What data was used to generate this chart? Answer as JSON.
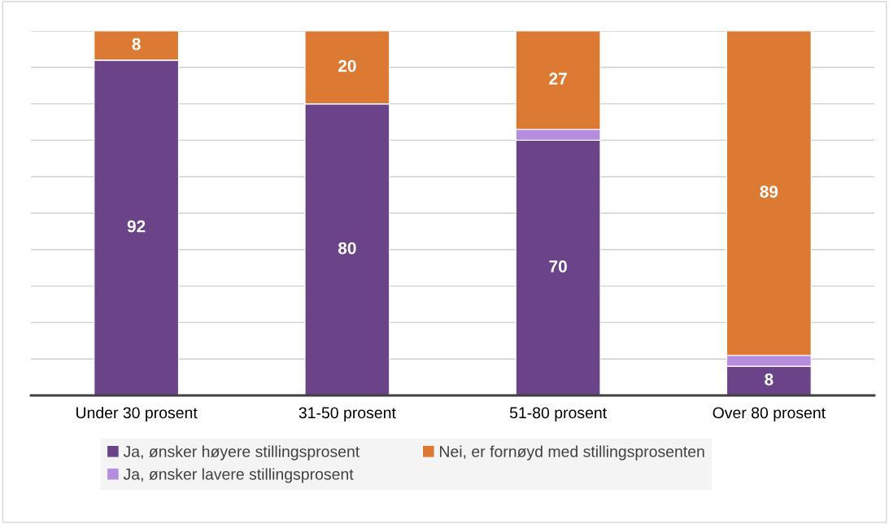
{
  "chart_data": {
    "type": "bar",
    "stacked": true,
    "categories": [
      "Under 30 prosent",
      "31-50 prosent",
      "51-80 prosent",
      "Over 80 prosent"
    ],
    "series": [
      {
        "name": "Ja, ønsker høyere stillingsprosent",
        "color": "#6a4389",
        "values": [
          92,
          80,
          70,
          8
        ],
        "value_labels": [
          "92",
          "80",
          "70",
          "8"
        ]
      },
      {
        "name": "Ja, ønsker lavere stillingsprosent",
        "color": "#b58ddf",
        "values": [
          0,
          0,
          3,
          3
        ],
        "value_labels": [
          null,
          null,
          null,
          null
        ]
      },
      {
        "name": "Nei, er fornøyd med stillingsprosenten",
        "color": "#dc7a33",
        "values": [
          8,
          20,
          27,
          89
        ],
        "value_labels": [
          "8",
          "20",
          "27",
          "89"
        ]
      }
    ],
    "ylim": [
      0,
      100
    ],
    "yticks": [
      {
        "value": 0,
        "label": null
      },
      {
        "value": 10,
        "label": null
      },
      {
        "value": 20,
        "label": null
      },
      {
        "value": 30,
        "label": null
      },
      {
        "value": 40,
        "label": null
      },
      {
        "value": 50,
        "label": null
      },
      {
        "value": 60,
        "label": null
      },
      {
        "value": 70,
        "label": null
      },
      {
        "value": 80,
        "label": null
      },
      {
        "value": 90,
        "label": null
      },
      {
        "value": 100,
        "label": null
      }
    ],
    "tick_labels": "x",
    "grid": "y",
    "legend": "bottom"
  }
}
